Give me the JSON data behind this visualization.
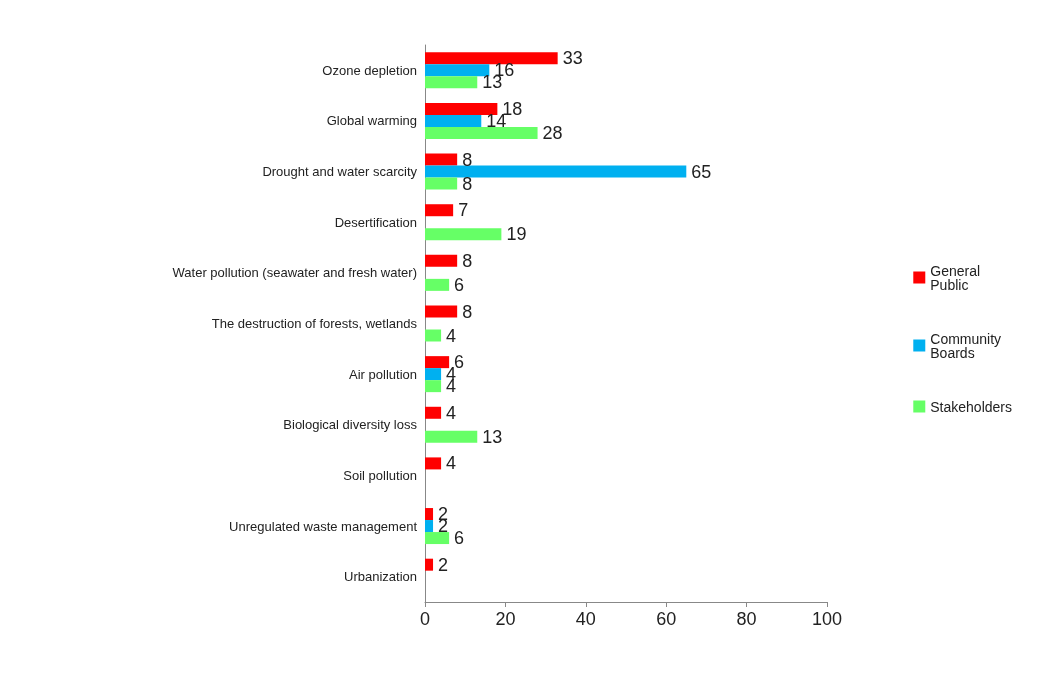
{
  "chart_data": {
    "type": "bar",
    "orientation": "horizontal",
    "categories": [
      "Ozone depletion",
      "Global warming",
      "Drought and water scarcity",
      "Desertification",
      "Water pollution (seawater and fresh water)",
      "The destruction of forests, wetlands",
      "Air pollution",
      "Biological diversity loss",
      "Soil pollution",
      "Unregulated waste management",
      "Urbanization"
    ],
    "series": [
      {
        "name": "General Public",
        "color": "#ff0000",
        "values": [
          33,
          18,
          8,
          7,
          8,
          8,
          6,
          4,
          4,
          2,
          2
        ]
      },
      {
        "name": "Community Boards",
        "color": "#00b0f0",
        "values": [
          16,
          14,
          65,
          null,
          null,
          null,
          4,
          null,
          null,
          2,
          null
        ]
      },
      {
        "name": "Stakeholders",
        "color": "#66ff66",
        "values": [
          13,
          28,
          8,
          19,
          6,
          4,
          4,
          13,
          null,
          6,
          null
        ]
      }
    ],
    "xlim": [
      0,
      100
    ],
    "xticks": [
      0,
      20,
      40,
      60,
      80,
      100
    ],
    "grid": false,
    "legend": "right",
    "data_labels": true
  }
}
